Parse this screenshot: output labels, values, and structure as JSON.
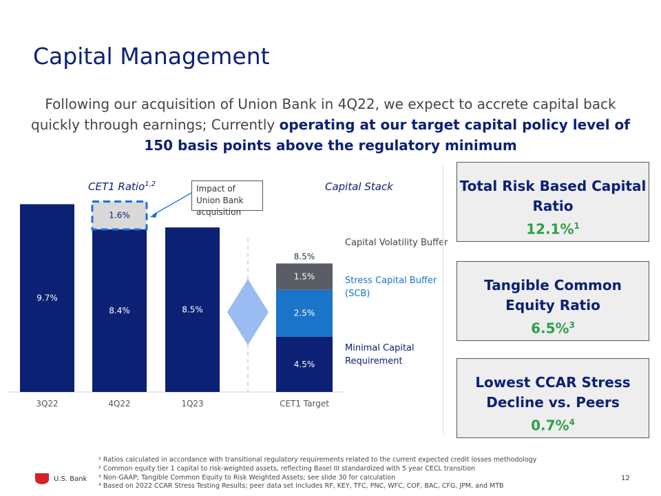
{
  "title": "Capital Management",
  "subtitle": {
    "normal": "Following our acquisition of Union Bank in 4Q22, we expect to accrete capital back quickly through earnings; Currently ",
    "bold": "operating at our target capital policy level of 150 basis points above the regulatory minimum"
  },
  "cet1_chart": {
    "title": "CET1 Ratio",
    "title_sup": "1,2",
    "callout": "Impact of Union Bank acquisition"
  },
  "stack_chart": {
    "title": "Capital Stack",
    "legend": {
      "cvb": "Capital Volatility Buffer",
      "scb": "Stress Capital Buffer (SCB)",
      "min": "Minimal Capital Requirement"
    }
  },
  "chart_data": [
    {
      "type": "bar",
      "title": "CET1 Ratio",
      "categories": [
        "3Q22",
        "4Q22",
        "1Q23"
      ],
      "series": [
        {
          "name": "CET1 Ratio",
          "values": [
            9.7,
            8.4,
            8.5
          ],
          "labels": [
            "9.7%",
            "8.4%",
            "8.5%"
          ]
        },
        {
          "name": "Impact of Union Bank acquisition",
          "values": [
            0,
            1.6,
            0
          ],
          "labels": [
            "",
            "1.6%",
            ""
          ]
        }
      ],
      "ylim": [
        0,
        10.2
      ]
    },
    {
      "type": "bar",
      "stacked": true,
      "title": "Capital Stack",
      "categories": [
        "CET1 Target"
      ],
      "series": [
        {
          "name": "Minimal Capital Requirement",
          "values": [
            4.5
          ],
          "labels": [
            "4.5%"
          ]
        },
        {
          "name": "Stress Capital Buffer (SCB)",
          "values": [
            2.5
          ],
          "labels": [
            "2.5%"
          ]
        },
        {
          "name": "Capital Volatility Buffer",
          "values": [
            1.5
          ],
          "labels": [
            "1.5%"
          ]
        }
      ],
      "total_label": "8.5%",
      "ylim": [
        0,
        10.2
      ]
    }
  ],
  "kpis": [
    {
      "label": "Total Risk Based Capital Ratio",
      "value": "12.1%",
      "sup": "1"
    },
    {
      "label": "Tangible Common Equity Ratio",
      "value": "6.5%",
      "sup": "3"
    },
    {
      "label": "Lowest CCAR Stress Decline vs. Peers",
      "value": "0.7%",
      "sup": "4"
    }
  ],
  "footnotes": [
    "¹ Ratios calculated in accordance with transitional regulatory requirements related to the current expected credit losses methodology",
    "² Common equity tier 1 capital to risk-weighted assets, reflecting Basel III standardized with 5 year CECL transition",
    "³ Non-GAAP; Tangible Common Equity to Risk Weighted Assets; see slide 30 for calculation",
    "⁴ Based on 2022 CCAR Stress Testing Results; peer data set includes RF, KEY, TFC, PNC, WFC, COF, BAC, CFG, JPM, and MTB"
  ],
  "logo_text": "U.S. Bank",
  "page_number": "12",
  "colors": {
    "navy": "#0c2074",
    "blue": "#1a74c8",
    "gray": "#5a5c66",
    "impact_fill": "#d9d9d9",
    "impact_border": "#1f6fe0",
    "diamond": "#9bbcf2",
    "green": "#2ba14a",
    "logo_red": "#d42027"
  }
}
